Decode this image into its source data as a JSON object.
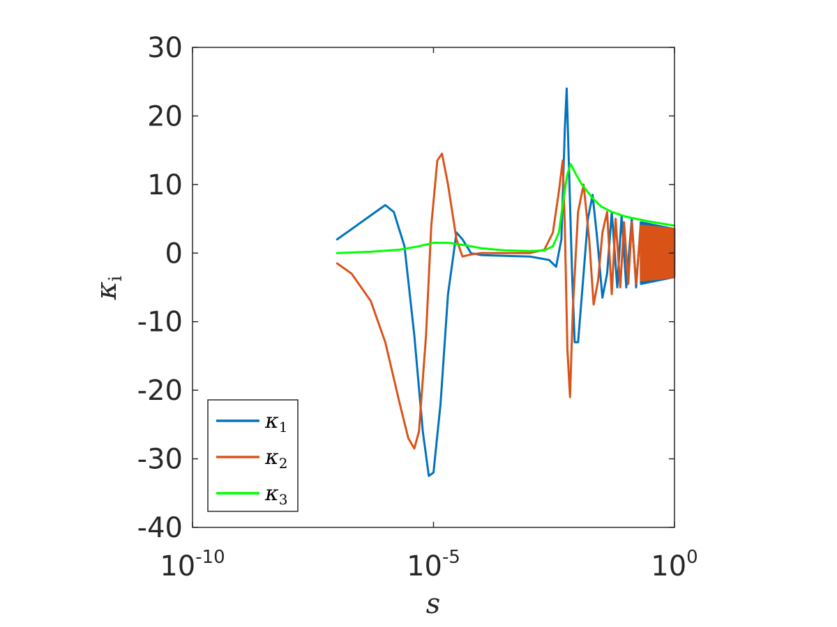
{
  "chart_data": {
    "type": "line",
    "title": "",
    "xlabel": "s",
    "ylabel": {
      "base": "κ",
      "sub": "i"
    },
    "xscale": "log",
    "xlim": [
      1e-10,
      1
    ],
    "ylim": [
      -40,
      30
    ],
    "x_ticks": [
      {
        "value": 1e-10,
        "base": "10",
        "exp": "-10"
      },
      {
        "value": 1e-05,
        "base": "10",
        "exp": "-5"
      },
      {
        "value": 1,
        "base": "10",
        "exp": "0"
      }
    ],
    "y_ticks": [
      {
        "value": 30,
        "label": "30"
      },
      {
        "value": 20,
        "label": "20"
      },
      {
        "value": 10,
        "label": "10"
      },
      {
        "value": 0,
        "label": "0"
      },
      {
        "value": -10,
        "label": "-10"
      },
      {
        "value": -20,
        "label": "-20"
      },
      {
        "value": -30,
        "label": "-30"
      },
      {
        "value": -40,
        "label": "-40"
      }
    ],
    "grid": false,
    "legend_position": "bottom-left",
    "series": [
      {
        "name": "κ1",
        "name_base": "κ",
        "name_sub": "1",
        "color": "#0072BD",
        "points": [
          {
            "x": 1e-07,
            "y": 2
          },
          {
            "x": 2e-07,
            "y": 3.5
          },
          {
            "x": 5e-07,
            "y": 5.5
          },
          {
            "x": 1e-06,
            "y": 7
          },
          {
            "x": 1.5e-06,
            "y": 6
          },
          {
            "x": 2.5e-06,
            "y": 1
          },
          {
            "x": 4e-06,
            "y": -12
          },
          {
            "x": 6e-06,
            "y": -26
          },
          {
            "x": 8e-06,
            "y": -32.5
          },
          {
            "x": 1e-05,
            "y": -32
          },
          {
            "x": 1.4e-05,
            "y": -22
          },
          {
            "x": 2e-05,
            "y": -6
          },
          {
            "x": 3e-05,
            "y": 3
          },
          {
            "x": 4e-05,
            "y": 2
          },
          {
            "x": 6e-05,
            "y": 0
          },
          {
            "x": 0.0001,
            "y": -0.3
          },
          {
            "x": 0.001,
            "y": -0.5
          },
          {
            "x": 0.0025,
            "y": -1
          },
          {
            "x": 0.0035,
            "y": -2
          },
          {
            "x": 0.0045,
            "y": 2
          },
          {
            "x": 0.0053,
            "y": 18
          },
          {
            "x": 0.0058,
            "y": 24
          },
          {
            "x": 0.0065,
            "y": 12
          },
          {
            "x": 0.0075,
            "y": -3
          },
          {
            "x": 0.0085,
            "y": -13
          },
          {
            "x": 0.01,
            "y": -13
          },
          {
            "x": 0.013,
            "y": -3
          },
          {
            "x": 0.016,
            "y": 5
          },
          {
            "x": 0.02,
            "y": 8.5
          },
          {
            "x": 0.025,
            "y": 2
          },
          {
            "x": 0.032,
            "y": -6.5
          },
          {
            "x": 0.04,
            "y": -3
          },
          {
            "x": 0.05,
            "y": 6
          },
          {
            "x": 0.065,
            "y": -5
          },
          {
            "x": 0.08,
            "y": 5.5
          },
          {
            "x": 0.1,
            "y": -5
          },
          {
            "x": 0.13,
            "y": 5
          },
          {
            "x": 0.16,
            "y": -5
          },
          {
            "x": 0.2,
            "y": 4.5
          }
        ]
      },
      {
        "name": "κ2",
        "name_base": "κ",
        "name_sub": "2",
        "color": "#D95319",
        "points": [
          {
            "x": 1e-07,
            "y": -1.5
          },
          {
            "x": 2e-07,
            "y": -3
          },
          {
            "x": 5e-07,
            "y": -7
          },
          {
            "x": 1e-06,
            "y": -13
          },
          {
            "x": 2e-06,
            "y": -22
          },
          {
            "x": 3e-06,
            "y": -27
          },
          {
            "x": 4e-06,
            "y": -28.5
          },
          {
            "x": 5e-06,
            "y": -26
          },
          {
            "x": 7e-06,
            "y": -12
          },
          {
            "x": 9e-06,
            "y": 4
          },
          {
            "x": 1.2e-05,
            "y": 13.5
          },
          {
            "x": 1.5e-05,
            "y": 14.5
          },
          {
            "x": 2e-05,
            "y": 10
          },
          {
            "x": 3e-05,
            "y": 2
          },
          {
            "x": 4e-05,
            "y": -0.5
          },
          {
            "x": 6e-05,
            "y": -0.2
          },
          {
            "x": 0.0001,
            "y": 0
          },
          {
            "x": 0.001,
            "y": 0
          },
          {
            "x": 0.002,
            "y": 0.5
          },
          {
            "x": 0.003,
            "y": 3
          },
          {
            "x": 0.004,
            "y": 9
          },
          {
            "x": 0.0048,
            "y": 13.5
          },
          {
            "x": 0.0053,
            "y": 4
          },
          {
            "x": 0.006,
            "y": -14
          },
          {
            "x": 0.0068,
            "y": -21
          },
          {
            "x": 0.0078,
            "y": -8
          },
          {
            "x": 0.01,
            "y": 6
          },
          {
            "x": 0.013,
            "y": 10
          },
          {
            "x": 0.017,
            "y": 2
          },
          {
            "x": 0.021,
            "y": -7.5
          },
          {
            "x": 0.026,
            "y": -4
          },
          {
            "x": 0.032,
            "y": 3
          },
          {
            "x": 0.04,
            "y": 6
          },
          {
            "x": 0.05,
            "y": -6
          },
          {
            "x": 0.06,
            "y": 5
          },
          {
            "x": 0.075,
            "y": -5
          },
          {
            "x": 0.09,
            "y": 4.5
          },
          {
            "x": 0.11,
            "y": -4.5
          },
          {
            "x": 0.13,
            "y": 4.5
          },
          {
            "x": 0.16,
            "y": -4.5
          },
          {
            "x": 0.2,
            "y": 4
          },
          {
            "x": 1,
            "y": 3.5
          }
        ]
      },
      {
        "name": "κ3",
        "name_base": "κ",
        "name_sub": "3",
        "color": "#00FF00",
        "points": [
          {
            "x": 1e-07,
            "y": 0
          },
          {
            "x": 5e-07,
            "y": 0.2
          },
          {
            "x": 2e-06,
            "y": 0.5
          },
          {
            "x": 5e-06,
            "y": 1
          },
          {
            "x": 1e-05,
            "y": 1.5
          },
          {
            "x": 2e-05,
            "y": 1.5
          },
          {
            "x": 5e-05,
            "y": 1.1
          },
          {
            "x": 0.0001,
            "y": 0.7
          },
          {
            "x": 0.0003,
            "y": 0.4
          },
          {
            "x": 0.001,
            "y": 0.3
          },
          {
            "x": 0.002,
            "y": 0.4
          },
          {
            "x": 0.003,
            "y": 1
          },
          {
            "x": 0.004,
            "y": 3
          },
          {
            "x": 0.005,
            "y": 8
          },
          {
            "x": 0.006,
            "y": 11.5
          },
          {
            "x": 0.007,
            "y": 13
          },
          {
            "x": 0.009,
            "y": 11.5
          },
          {
            "x": 0.012,
            "y": 10
          },
          {
            "x": 0.02,
            "y": 8
          },
          {
            "x": 0.03,
            "y": 6.8
          },
          {
            "x": 0.05,
            "y": 6
          },
          {
            "x": 0.1,
            "y": 5.3
          },
          {
            "x": 0.3,
            "y": 4.6
          },
          {
            "x": 1,
            "y": 4
          }
        ]
      }
    ]
  }
}
